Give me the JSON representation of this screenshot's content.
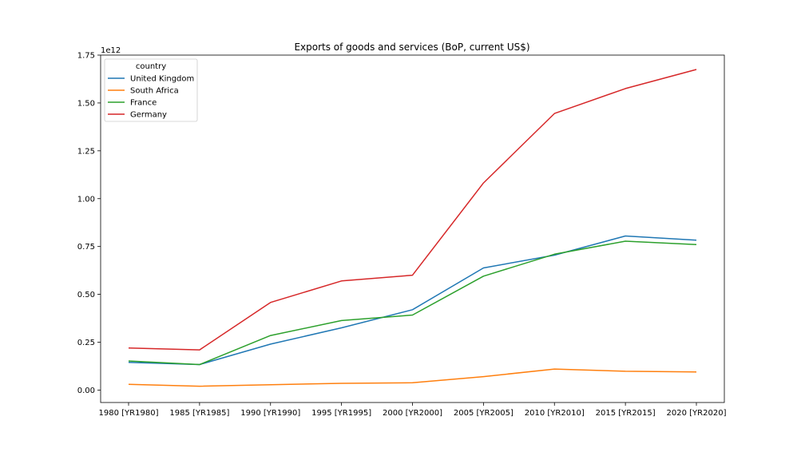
{
  "chart_data": {
    "type": "line",
    "title": "Exports of goods and services (BoP, current US$)",
    "xlabel": "",
    "ylabel": "",
    "y_scale_label": "1e12",
    "categories": [
      "1980 [YR1980]",
      "1985 [YR1985]",
      "1990 [YR1990]",
      "1995 [YR1995]",
      "2000 [YR2000]",
      "2005 [YR2005]",
      "2010 [YR2010]",
      "2015 [YR2015]",
      "2020 [YR2020]"
    ],
    "ylim": [
      -0.065,
      1.75
    ],
    "yticks": [
      0.0,
      0.25,
      0.5,
      0.75,
      1.0,
      1.25,
      1.5,
      1.75
    ],
    "ytick_labels": [
      "0.00",
      "0.25",
      "0.50",
      "0.75",
      "1.00",
      "1.25",
      "1.50",
      "1.75"
    ],
    "grid": false,
    "legend": {
      "title": "country",
      "position": "top-left"
    },
    "series": [
      {
        "name": "United Kingdom",
        "color": "#1f77b4",
        "values": [
          0.145,
          0.133,
          0.24,
          0.325,
          0.42,
          0.638,
          0.705,
          0.805,
          0.783
        ]
      },
      {
        "name": "South Africa",
        "color": "#ff7f0e",
        "values": [
          0.03,
          0.02,
          0.028,
          0.035,
          0.038,
          0.07,
          0.11,
          0.098,
          0.095
        ]
      },
      {
        "name": "France",
        "color": "#2ca02c",
        "values": [
          0.152,
          0.133,
          0.285,
          0.363,
          0.392,
          0.595,
          0.71,
          0.778,
          0.76
        ]
      },
      {
        "name": "Germany",
        "color": "#d62728",
        "values": [
          0.22,
          0.21,
          0.458,
          0.57,
          0.6,
          1.082,
          1.445,
          1.575,
          1.675
        ]
      }
    ]
  }
}
